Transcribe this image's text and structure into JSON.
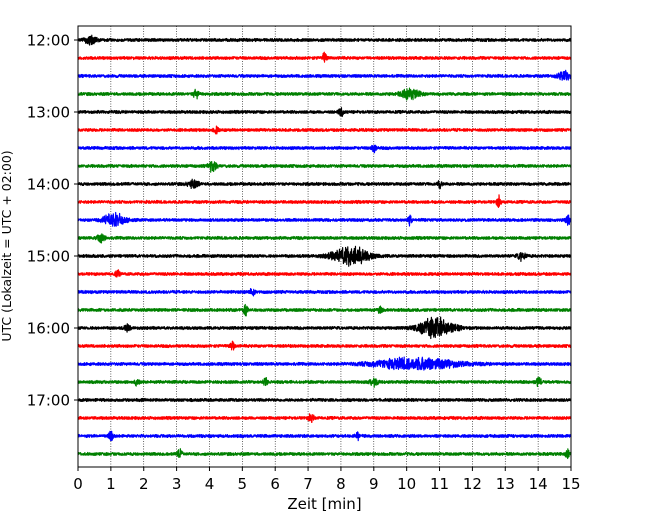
{
  "chart_data": {
    "type": "line",
    "title": "",
    "xlabel": "Zeit  [min]",
    "ylabel": "UTC (Lokalzeit = UTC + 02:00)",
    "xlim": [
      0,
      15
    ],
    "x_ticks": [
      "0",
      "1",
      "2",
      "3",
      "4",
      "5",
      "6",
      "7",
      "8",
      "9",
      "10",
      "11",
      "12",
      "13",
      "14",
      "15"
    ],
    "y_ticks": [
      "12:00",
      "13:00",
      "14:00",
      "15:00",
      "16:00",
      "17:00"
    ],
    "y_tick_rows": [
      0,
      4,
      8,
      12,
      16,
      20
    ],
    "row_interval_min": 15,
    "vertical_grid": true,
    "grid_style": "dotted",
    "trace_colors": [
      "#000000",
      "#ff0000",
      "#0000ff",
      "#008000"
    ],
    "rows": [
      {
        "start": "12:00",
        "color": "#000000",
        "events": [
          {
            "t": 0.4,
            "amp": 0.5,
            "dur": 0.4
          }
        ]
      },
      {
        "start": "12:15",
        "color": "#ff0000",
        "events": [
          {
            "t": 7.5,
            "amp": 0.5,
            "dur": 0.15
          }
        ]
      },
      {
        "start": "12:30",
        "color": "#0000ff",
        "events": [
          {
            "t": 14.8,
            "amp": 0.45,
            "dur": 0.5
          }
        ]
      },
      {
        "start": "12:45",
        "color": "#008000",
        "events": [
          {
            "t": 3.6,
            "amp": 0.45,
            "dur": 0.2
          },
          {
            "t": 10.1,
            "amp": 0.5,
            "dur": 0.7
          }
        ]
      },
      {
        "start": "13:00",
        "color": "#000000",
        "events": [
          {
            "t": 8.0,
            "amp": 0.6,
            "dur": 0.15
          }
        ]
      },
      {
        "start": "13:15",
        "color": "#ff0000",
        "events": [
          {
            "t": 4.2,
            "amp": 0.4,
            "dur": 0.15
          }
        ]
      },
      {
        "start": "13:30",
        "color": "#0000ff",
        "events": [
          {
            "t": 9.0,
            "amp": 0.5,
            "dur": 0.15
          }
        ]
      },
      {
        "start": "13:45",
        "color": "#008000",
        "events": [
          {
            "t": 4.1,
            "amp": 0.55,
            "dur": 0.3
          }
        ]
      },
      {
        "start": "14:00",
        "color": "#000000",
        "events": [
          {
            "t": 3.5,
            "amp": 0.35,
            "dur": 0.4
          },
          {
            "t": 11.0,
            "amp": 0.45,
            "dur": 0.15
          }
        ]
      },
      {
        "start": "14:15",
        "color": "#ff0000",
        "events": [
          {
            "t": 12.8,
            "amp": 0.6,
            "dur": 0.15
          }
        ]
      },
      {
        "start": "14:30",
        "color": "#0000ff",
        "events": [
          {
            "t": 1.1,
            "amp": 0.65,
            "dur": 0.8
          },
          {
            "t": 10.1,
            "amp": 0.45,
            "dur": 0.15
          },
          {
            "t": 14.9,
            "amp": 0.5,
            "dur": 0.15
          }
        ]
      },
      {
        "start": "14:45",
        "color": "#008000",
        "events": [
          {
            "t": 0.7,
            "amp": 0.5,
            "dur": 0.25
          }
        ]
      },
      {
        "start": "15:00",
        "color": "#000000",
        "events": [
          {
            "t": 8.3,
            "amp": 0.95,
            "dur": 1.3
          },
          {
            "t": 13.5,
            "amp": 0.4,
            "dur": 0.3
          }
        ]
      },
      {
        "start": "15:15",
        "color": "#ff0000",
        "events": [
          {
            "t": 1.2,
            "amp": 0.35,
            "dur": 0.15
          }
        ]
      },
      {
        "start": "15:30",
        "color": "#0000ff",
        "events": [
          {
            "t": 5.3,
            "amp": 0.45,
            "dur": 0.15
          }
        ]
      },
      {
        "start": "15:45",
        "color": "#008000",
        "events": [
          {
            "t": 5.1,
            "amp": 0.55,
            "dur": 0.15
          },
          {
            "t": 9.2,
            "amp": 0.45,
            "dur": 0.15
          }
        ]
      },
      {
        "start": "16:00",
        "color": "#000000",
        "events": [
          {
            "t": 1.5,
            "amp": 0.35,
            "dur": 0.2
          },
          {
            "t": 10.9,
            "amp": 1.0,
            "dur": 1.3
          }
        ]
      },
      {
        "start": "16:15",
        "color": "#ff0000",
        "events": [
          {
            "t": 4.7,
            "amp": 0.45,
            "dur": 0.15
          }
        ]
      },
      {
        "start": "16:30",
        "color": "#0000ff",
        "events": [
          {
            "t": 10.3,
            "amp": 0.6,
            "dur": 3.0
          }
        ]
      },
      {
        "start": "16:45",
        "color": "#008000",
        "events": [
          {
            "t": 1.8,
            "amp": 0.45,
            "dur": 0.15
          },
          {
            "t": 5.7,
            "amp": 0.45,
            "dur": 0.15
          },
          {
            "t": 9.0,
            "amp": 0.4,
            "dur": 0.3
          },
          {
            "t": 14.0,
            "amp": 0.5,
            "dur": 0.2
          }
        ]
      },
      {
        "start": "17:00",
        "color": "#000000",
        "events": []
      },
      {
        "start": "17:15",
        "color": "#ff0000",
        "events": [
          {
            "t": 7.1,
            "amp": 0.45,
            "dur": 0.2
          }
        ]
      },
      {
        "start": "17:30",
        "color": "#0000ff",
        "events": [
          {
            "t": 1.0,
            "amp": 0.5,
            "dur": 0.15
          },
          {
            "t": 8.5,
            "amp": 0.45,
            "dur": 0.15
          }
        ]
      },
      {
        "start": "17:45",
        "color": "#008000",
        "events": [
          {
            "t": 3.1,
            "amp": 0.55,
            "dur": 0.15
          },
          {
            "t": 14.9,
            "amp": 0.5,
            "dur": 0.15
          }
        ]
      }
    ]
  }
}
